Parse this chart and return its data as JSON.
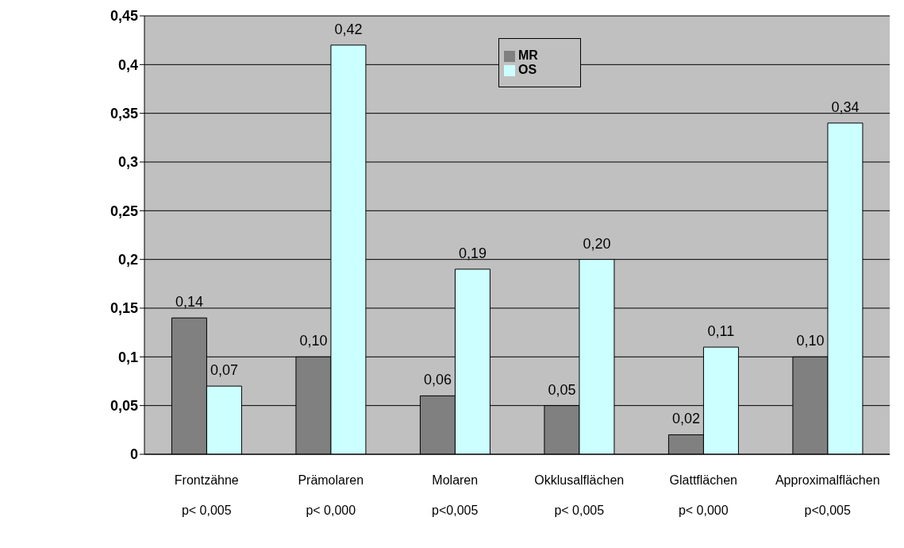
{
  "chart_data": {
    "type": "bar",
    "categories": [
      "Frontzähne\np< 0,005",
      "Prämolaren\np< 0,000",
      "Molaren\np<0,005",
      "Okklusalflächen\np< 0,005",
      "Glattflächen\np< 0,000",
      "Approximalflächen\np<0,005"
    ],
    "series": [
      {
        "name": "MR",
        "color": "#808080",
        "values": [
          0.14,
          0.1,
          0.06,
          0.05,
          0.02,
          0.1
        ],
        "value_labels": [
          "0,14",
          "0,10",
          "0,06",
          "0,05",
          "0,02",
          "0,10"
        ]
      },
      {
        "name": "OS",
        "color": "#ccffff",
        "values": [
          0.07,
          0.42,
          0.19,
          0.2,
          0.11,
          0.34
        ],
        "value_labels": [
          "0,07",
          "0,42",
          "0,19",
          "0,20",
          "0,11",
          "0,34"
        ]
      }
    ],
    "ylim": [
      0,
      0.45
    ],
    "yticks": [
      {
        "value": 0,
        "label": "0"
      },
      {
        "value": 0.05,
        "label": "0,05"
      },
      {
        "value": 0.1,
        "label": "0,1"
      },
      {
        "value": 0.15,
        "label": "0,15"
      },
      {
        "value": 0.2,
        "label": "0,2"
      },
      {
        "value": 0.25,
        "label": "0,25"
      },
      {
        "value": 0.3,
        "label": "0,3"
      },
      {
        "value": 0.35,
        "label": "0,35"
      },
      {
        "value": 0.4,
        "label": "0,4"
      },
      {
        "value": 0.45,
        "label": "0,45"
      }
    ],
    "grid": "y",
    "legend": "top"
  }
}
